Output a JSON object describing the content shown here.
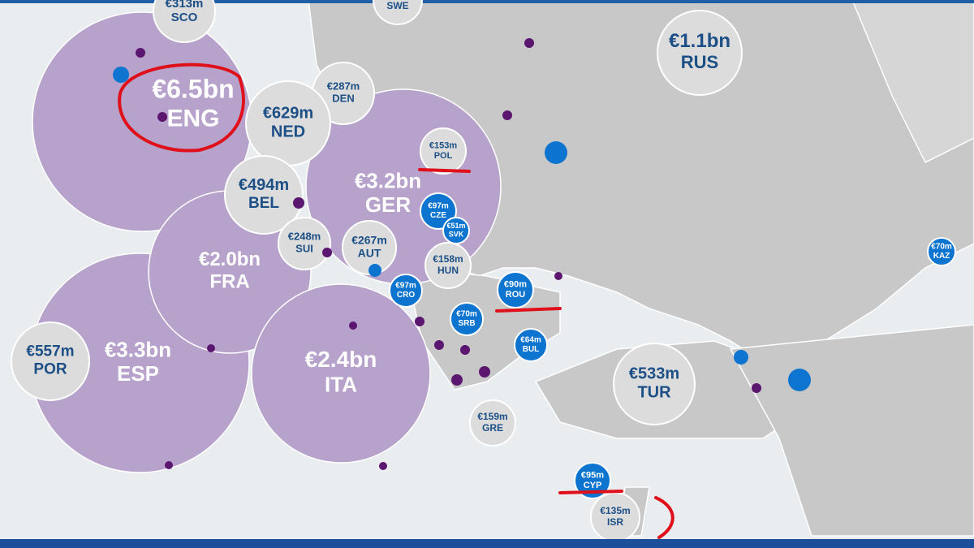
{
  "bubbles": [
    {
      "amount": "€6.5bn",
      "code": "ENG"
    },
    {
      "amount": "€3.2bn",
      "code": "GER"
    },
    {
      "amount": "€3.3bn",
      "code": "ESP"
    },
    {
      "amount": "€2.0bn",
      "code": "FRA"
    },
    {
      "amount": "€2.4bn",
      "code": "ITA"
    },
    {
      "amount": "€313m",
      "code": "SCO"
    },
    {
      "code": "SWE"
    },
    {
      "amount": "€1.1bn",
      "code": "RUS"
    },
    {
      "amount": "€287m",
      "code": "DEN"
    },
    {
      "amount": "€629m",
      "code": "NED"
    },
    {
      "amount": "€153m",
      "code": "POL"
    },
    {
      "amount": "€494m",
      "code": "BEL"
    },
    {
      "amount": "€248m",
      "code": "SUI"
    },
    {
      "amount": "€267m",
      "code": "AUT"
    },
    {
      "amount": "€158m",
      "code": "HUN"
    },
    {
      "amount": "€97m",
      "code": "CZE"
    },
    {
      "amount": "€51m",
      "code": "SVK"
    },
    {
      "amount": "€97m",
      "code": "CRO"
    },
    {
      "amount": "€70m",
      "code": "SRB"
    },
    {
      "amount": "€90m",
      "code": "ROU"
    },
    {
      "amount": "€64m",
      "code": "BUL"
    },
    {
      "amount": "€70m",
      "code": "KAZ"
    },
    {
      "amount": "€557m",
      "code": "POR"
    },
    {
      "amount": "€533m",
      "code": "TUR"
    },
    {
      "amount": "€159m",
      "code": "GRE"
    },
    {
      "amount": "€95m",
      "code": "CYP"
    },
    {
      "amount": "€135m",
      "code": "ISR"
    }
  ]
}
